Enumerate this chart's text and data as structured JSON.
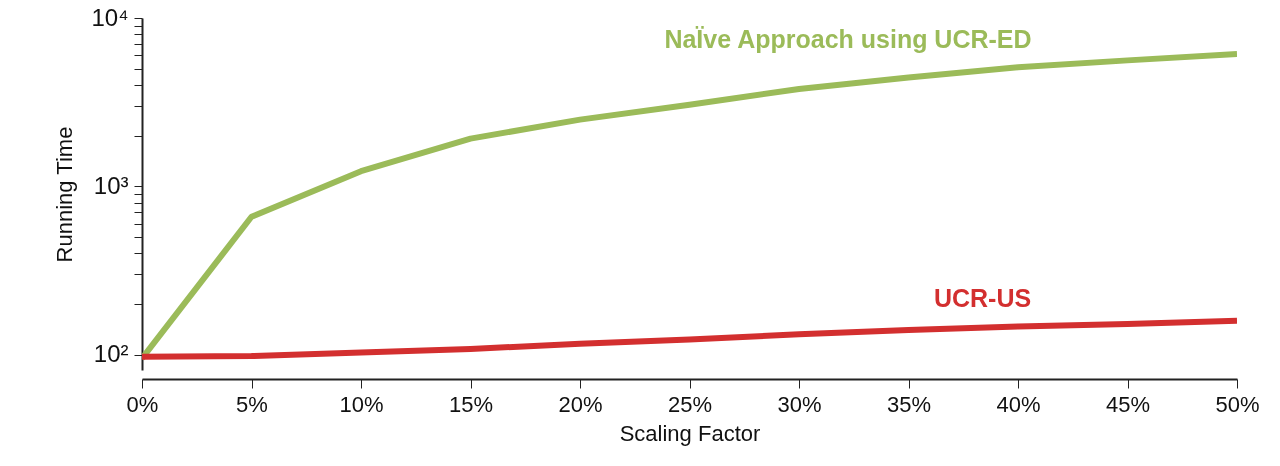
{
  "chart_data": {
    "type": "line",
    "xlabel": "Scaling Factor",
    "ylabel": "Running Time",
    "log": "y",
    "x": [
      0,
      5,
      10,
      15,
      20,
      25,
      30,
      35,
      40,
      45,
      50
    ],
    "xlim": [
      0,
      50
    ],
    "xticks": [
      {
        "value": 0,
        "label": "0%"
      },
      {
        "value": 5,
        "label": "5%"
      },
      {
        "value": 10,
        "label": "10%"
      },
      {
        "value": 15,
        "label": "15%"
      },
      {
        "value": 20,
        "label": "20%"
      },
      {
        "value": 25,
        "label": "25%"
      },
      {
        "value": 30,
        "label": "30%"
      },
      {
        "value": 35,
        "label": "35%"
      },
      {
        "value": 40,
        "label": "40%"
      },
      {
        "value": 45,
        "label": "45%"
      },
      {
        "value": 50,
        "label": "50%"
      }
    ],
    "ylim": [
      81,
      10000
    ],
    "yticks": [
      {
        "value": 100,
        "label": "10²"
      },
      {
        "value": 200,
        "label": null
      },
      {
        "value": 300,
        "label": null
      },
      {
        "value": 400,
        "label": null
      },
      {
        "value": 500,
        "label": null
      },
      {
        "value": 600,
        "label": null
      },
      {
        "value": 700,
        "label": null
      },
      {
        "value": 800,
        "label": null
      },
      {
        "value": 900,
        "label": null
      },
      {
        "value": 1000,
        "label": "10³"
      },
      {
        "value": 2000,
        "label": null
      },
      {
        "value": 3000,
        "label": null
      },
      {
        "value": 4000,
        "label": null
      },
      {
        "value": 5000,
        "label": null
      },
      {
        "value": 6000,
        "label": null
      },
      {
        "value": 7000,
        "label": null
      },
      {
        "value": 8000,
        "label": null
      },
      {
        "value": 9000,
        "label": null
      },
      {
        "value": 10000,
        "label": "10⁴"
      }
    ],
    "series": [
      {
        "name": "NaÏve Approach using UCR-ED",
        "color": "#9bbb59",
        "values": [
          95,
          659,
          1230,
          1920,
          2490,
          3050,
          3790,
          4430,
          5100,
          5600,
          6110
        ]
      },
      {
        "name": "UCR-US",
        "color": "#d32f2f",
        "values": [
          97,
          98,
          103,
          108,
          116,
          123,
          132,
          140,
          147,
          152,
          159
        ]
      }
    ]
  }
}
